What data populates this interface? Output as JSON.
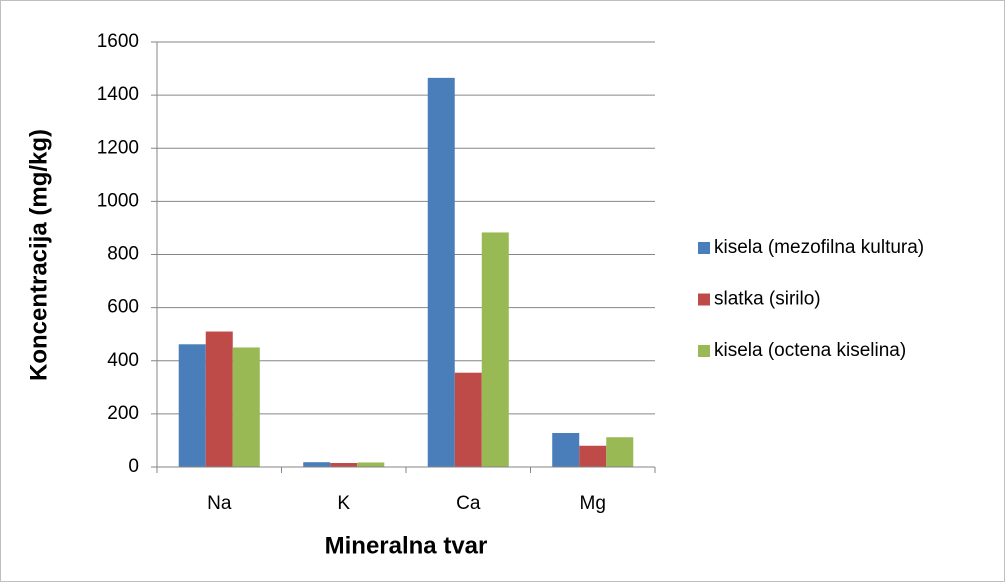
{
  "chart_data": {
    "type": "bar",
    "categories": [
      "Na",
      "K",
      "Ca",
      "Mg"
    ],
    "series": [
      {
        "name": "kisela (mezofilna kultura)",
        "color": "#4a7ebb",
        "values": [
          462,
          18,
          1465,
          128
        ]
      },
      {
        "name": "slatka (sirilo)",
        "color": "#be4b48",
        "values": [
          510,
          15,
          355,
          80
        ]
      },
      {
        "name": "kisela (octena kiselina)",
        "color": "#98b954",
        "values": [
          450,
          17,
          883,
          112
        ]
      }
    ],
    "xlabel": "Mineralna tvar",
    "ylabel": "Koncentracija (mg/kg)",
    "ylim": [
      0,
      1600
    ],
    "yticks": [
      0,
      200,
      400,
      600,
      800,
      1000,
      1200,
      1400,
      1600
    ],
    "grid": true,
    "legend": "right"
  }
}
